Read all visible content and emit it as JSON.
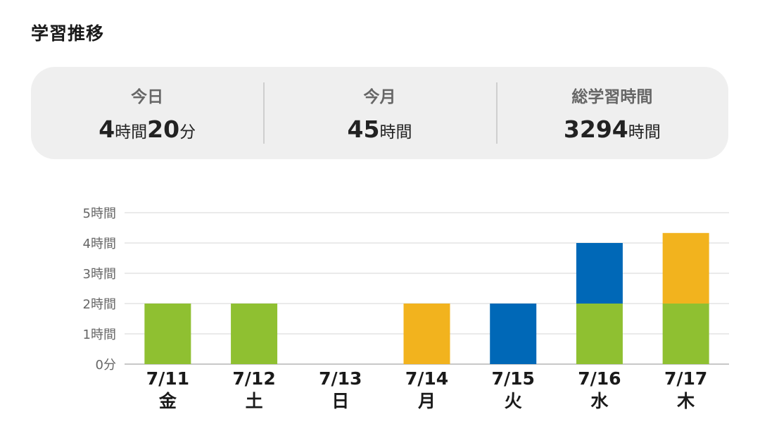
{
  "title": "学習推移",
  "summary": {
    "today": {
      "label": "今日",
      "h": "4",
      "h_unit": "時間",
      "m": "20",
      "m_unit": "分"
    },
    "month": {
      "label": "今月",
      "h": "45",
      "h_unit": "時間"
    },
    "total": {
      "label": "総学習時間",
      "h": "3294",
      "h_unit": "時間"
    }
  },
  "colors": {
    "green": "#8fc031",
    "orange": "#f2b31e",
    "blue": "#0068b7"
  },
  "chart_data": {
    "type": "bar",
    "stacked": true,
    "categories": [
      "7/11",
      "7/12",
      "7/13",
      "7/14",
      "7/15",
      "7/16",
      "7/17"
    ],
    "weekdays": [
      "金",
      "土",
      "日",
      "月",
      "火",
      "水",
      "木"
    ],
    "series": [
      {
        "color": "#8fc031",
        "values": [
          2,
          2,
          0,
          0,
          0,
          2,
          2
        ]
      },
      {
        "color": "#f2b31e",
        "values": [
          0,
          0,
          0,
          2,
          0,
          0,
          2.33
        ]
      },
      {
        "color": "#0068b7",
        "values": [
          0,
          0,
          0,
          0,
          2,
          2,
          0
        ]
      }
    ],
    "ylim": [
      0,
      5
    ],
    "yticks": [
      0,
      1,
      2,
      3,
      4,
      5
    ],
    "ytick_labels": [
      "0分",
      "1時間",
      "2時間",
      "3時間",
      "4時間",
      "5時間"
    ],
    "grid": true,
    "legend": "none"
  }
}
